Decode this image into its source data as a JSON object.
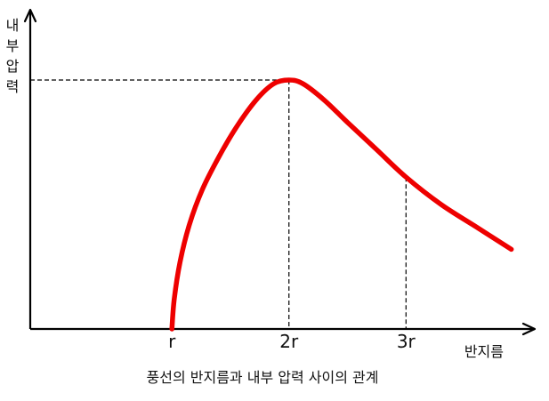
{
  "chart_data": {
    "type": "line",
    "title": "",
    "caption": "풍선의 반지름과 내부 압력 사이의  관계",
    "xlabel": "반지름",
    "ylabel": "내부 압력",
    "ylabel_chars": [
      "내",
      "부",
      "압",
      "력"
    ],
    "x_ticks": [
      {
        "label": "r",
        "value": 1
      },
      {
        "label": "2r",
        "value": 2
      },
      {
        "label": "3r",
        "value": 3
      }
    ],
    "x_range": [
      -0.21,
      4.1
    ],
    "y_range": [
      0,
      1.05
    ],
    "series": [
      {
        "color": "#ee0000",
        "points": [
          [
            1.0,
            0.0
          ],
          [
            1.02,
            0.12
          ],
          [
            1.07,
            0.27
          ],
          [
            1.15,
            0.42
          ],
          [
            1.26,
            0.56
          ],
          [
            1.4,
            0.69
          ],
          [
            1.55,
            0.81
          ],
          [
            1.72,
            0.92
          ],
          [
            1.87,
            0.985
          ],
          [
            2.0,
            1.0
          ],
          [
            2.12,
            0.985
          ],
          [
            2.3,
            0.92
          ],
          [
            2.5,
            0.83
          ],
          [
            2.75,
            0.72
          ],
          [
            3.0,
            0.61
          ],
          [
            3.3,
            0.5
          ],
          [
            3.6,
            0.41
          ],
          [
            3.9,
            0.32
          ]
        ]
      }
    ],
    "reference_lines": [
      {
        "x": 2,
        "y": 1.0,
        "horizontal": true,
        "vertical": true
      },
      {
        "x": 3,
        "y": 0.61,
        "horizontal": false,
        "vertical": true
      }
    ],
    "grid": false,
    "legend": "none",
    "axis_color": "#000000"
  }
}
